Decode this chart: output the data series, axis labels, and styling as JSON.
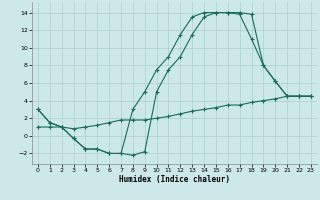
{
  "bg_color": "#cce8e8",
  "line_color": "#1a6b5a",
  "grid_color": "#aad0cc",
  "xlabel": "Humidex (Indice chaleur)",
  "xlim": [
    -0.5,
    23.5
  ],
  "ylim": [
    -3.2,
    15.2
  ],
  "xticks": [
    0,
    1,
    2,
    3,
    4,
    5,
    6,
    7,
    8,
    9,
    10,
    11,
    12,
    13,
    14,
    15,
    16,
    17,
    18,
    19,
    20,
    21,
    22,
    23
  ],
  "yticks": [
    -2,
    0,
    2,
    4,
    6,
    8,
    10,
    12,
    14
  ],
  "curve_upper_x": [
    0,
    1,
    2,
    3,
    4,
    5,
    6,
    7,
    8,
    9,
    10,
    11,
    12,
    13,
    14,
    15,
    16,
    17,
    18,
    19,
    20,
    21,
    22,
    23
  ],
  "curve_upper_y": [
    3.0,
    1.5,
    1.0,
    -0.3,
    -1.5,
    -1.5,
    -2.0,
    -2.0,
    3.0,
    5.0,
    7.5,
    9.0,
    11.5,
    13.5,
    14.0,
    14.0,
    14.0,
    13.8,
    11.0,
    8.0,
    6.2,
    4.5,
    4.5,
    4.5
  ],
  "curve_lower_x": [
    0,
    1,
    2,
    3,
    4,
    5,
    6,
    7,
    8,
    9,
    10,
    11,
    12,
    13,
    14,
    15,
    16,
    17,
    18,
    19,
    20,
    21,
    22,
    23
  ],
  "curve_lower_y": [
    3.0,
    1.5,
    1.0,
    -0.3,
    -1.5,
    -1.5,
    -2.0,
    -2.0,
    -2.2,
    -1.8,
    5.0,
    7.5,
    9.0,
    11.5,
    13.5,
    14.0,
    14.0,
    14.0,
    13.8,
    8.0,
    6.2,
    4.5,
    4.5,
    4.5
  ],
  "curve_flat_x": [
    0,
    1,
    2,
    3,
    4,
    5,
    6,
    7,
    8,
    9,
    10,
    11,
    12,
    13,
    14,
    15,
    16,
    17,
    18,
    19,
    20,
    21,
    22,
    23
  ],
  "curve_flat_y": [
    1.0,
    1.0,
    1.0,
    0.8,
    1.0,
    1.2,
    1.5,
    1.8,
    1.8,
    1.8,
    2.0,
    2.2,
    2.5,
    2.8,
    3.0,
    3.2,
    3.5,
    3.5,
    3.8,
    4.0,
    4.2,
    4.5,
    4.5,
    4.5
  ]
}
